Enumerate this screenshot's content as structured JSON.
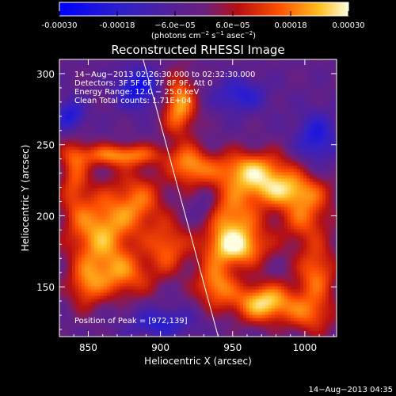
{
  "chart_data": {
    "type": "heatmap",
    "title": "Reconstructed RHESSI Image",
    "xlabel": "Heliocentric X (arcsec)",
    "ylabel": "Heliocentric Y (arcsec)",
    "xlim": [
      830,
      1022
    ],
    "ylim": [
      115,
      310
    ],
    "xticks": [
      850,
      900,
      950,
      1000
    ],
    "yticks": [
      150,
      200,
      250,
      300
    ],
    "colorbar": {
      "range": [
        -0.0003,
        0.0003
      ],
      "tick_labels": [
        "-0.00030",
        "-0.00018",
        "−6.0e−05",
        "6.0e−05",
        "0.00018",
        "0.00030"
      ],
      "tick_values": [
        -0.0003,
        -0.00018,
        -6e-05,
        6e-05,
        0.00018,
        0.0003
      ],
      "unit_prefix": "(photons cm",
      "unit_sup1": "−2",
      "unit_mid": " s",
      "unit_sup2": "−1",
      "unit_mid2": " asec",
      "unit_sup3": "−2",
      "unit_suffix": ")"
    },
    "annotations": [
      "14−Aug−2013 02:26:30.000 to 02:32:30.000",
      "Detectors: 3F 5F 6F 7F 8F 9F, Att 0",
      "Energy Range: 12.0 − 25.0 keV",
      "Clean    Total counts: 1.71E+04"
    ],
    "peak_label": "Position of Peak = [972,139]",
    "peak": [
      972,
      139
    ],
    "limb_line": [
      [
        888,
        310
      ],
      [
        940,
        115
      ]
    ],
    "bright_regions": [
      {
        "x": 913,
        "y": 278,
        "rx": 12,
        "ry": 22,
        "v": 0.00025
      },
      {
        "x": 920,
        "y": 235,
        "rx": 14,
        "ry": 14,
        "v": 0.0002
      },
      {
        "x": 872,
        "y": 243,
        "rx": 30,
        "ry": 8,
        "v": 0.00022
      },
      {
        "x": 858,
        "y": 188,
        "rx": 22,
        "ry": 30,
        "v": 0.00025
      },
      {
        "x": 885,
        "y": 210,
        "rx": 18,
        "ry": 22,
        "v": 0.00018
      },
      {
        "x": 840,
        "y": 230,
        "rx": 10,
        "ry": 30,
        "v": 0.00015
      },
      {
        "x": 962,
        "y": 232,
        "rx": 30,
        "ry": 14,
        "v": 0.00026
      },
      {
        "x": 985,
        "y": 218,
        "rx": 28,
        "ry": 12,
        "v": 0.0002
      },
      {
        "x": 1000,
        "y": 200,
        "rx": 18,
        "ry": 20,
        "v": 0.00018
      },
      {
        "x": 948,
        "y": 200,
        "rx": 22,
        "ry": 18,
        "v": 0.00022
      },
      {
        "x": 952,
        "y": 178,
        "rx": 22,
        "ry": 14,
        "v": 0.00028
      },
      {
        "x": 972,
        "y": 139,
        "rx": 22,
        "ry": 14,
        "v": 0.0003
      },
      {
        "x": 938,
        "y": 152,
        "rx": 14,
        "ry": 16,
        "v": 0.00022
      },
      {
        "x": 1008,
        "y": 160,
        "rx": 14,
        "ry": 20,
        "v": 0.0002
      },
      {
        "x": 1005,
        "y": 130,
        "rx": 16,
        "ry": 14,
        "v": 0.00016
      },
      {
        "x": 875,
        "y": 158,
        "rx": 22,
        "ry": 16,
        "v": 0.00017
      },
      {
        "x": 905,
        "y": 178,
        "rx": 14,
        "ry": 18,
        "v": 0.00018
      },
      {
        "x": 848,
        "y": 150,
        "rx": 12,
        "ry": 16,
        "v": 0.00015
      }
    ],
    "dark_regions": [
      {
        "x": 885,
        "y": 290,
        "rx": 15,
        "ry": 14,
        "v": -0.00022
      },
      {
        "x": 838,
        "y": 270,
        "rx": 10,
        "ry": 12,
        "v": -0.0002
      },
      {
        "x": 955,
        "y": 285,
        "rx": 18,
        "ry": 12,
        "v": -0.00016
      },
      {
        "x": 1008,
        "y": 255,
        "rx": 14,
        "ry": 18,
        "v": -0.00018
      },
      {
        "x": 900,
        "y": 125,
        "rx": 22,
        "ry": 10,
        "v": -0.00016
      },
      {
        "x": 930,
        "y": 205,
        "rx": 10,
        "ry": 14,
        "v": -0.00012
      }
    ],
    "timestamp": "14−Aug−2013 04:35"
  }
}
